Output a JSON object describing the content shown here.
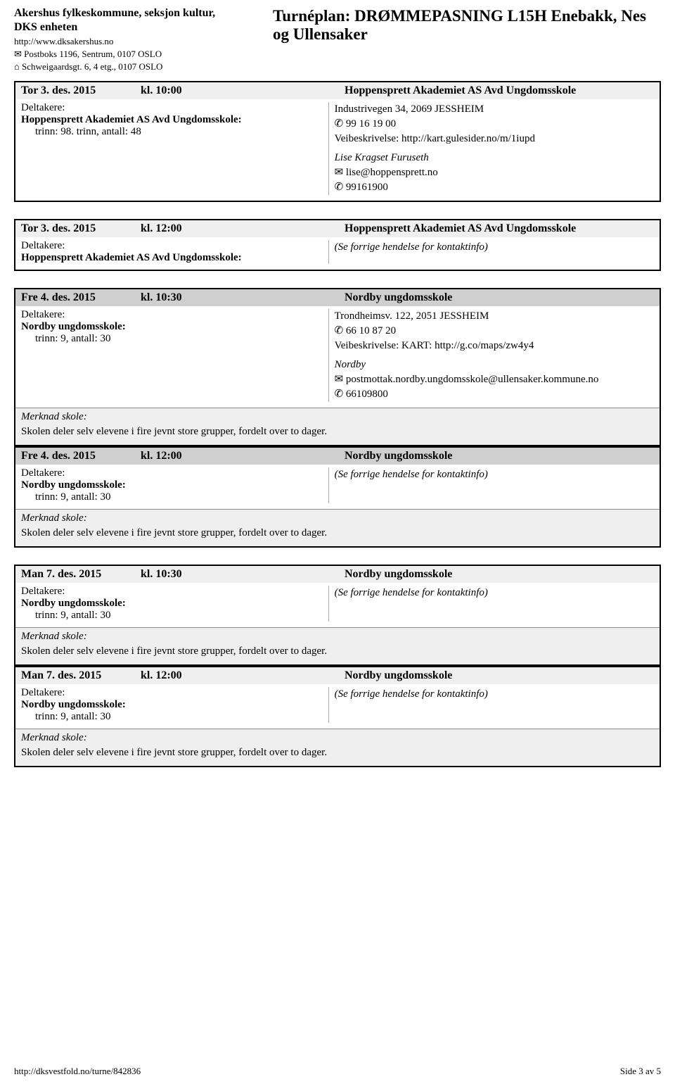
{
  "header": {
    "org_line1": "Akershus fylkeskommune, seksjon kultur,",
    "org_line2": "DKS enheten",
    "url": "http://www.dksakershus.no",
    "addr1": "✉ Postboks 1196, Sentrum, 0107 OSLO",
    "addr2": "⌂ Schweigaardsgt. 6, 4 etg., 0107 OSLO",
    "title": "Turnéplan: DRØMMEPASNING L15H Enebakk, Nes og Ullensaker"
  },
  "labels": {
    "deltakere": "Deltakere:",
    "merknad": "Merknad skole:",
    "see_prev": "(Se forrige hendelse for kontaktinfo)"
  },
  "events": [
    {
      "header_bg": "gray",
      "date": "Tor 3. des. 2015",
      "time": "kl. 10:00",
      "venue": "Hoppensprett Akademiet AS Avd Ungdomsskole",
      "school": "Hoppensprett Akademiet AS Avd Ungdomsskole:",
      "trinn": "trinn: 98. trinn, antall: 48",
      "right": [
        {
          "text": "Industrivegen 34, 2069 JESSHEIM"
        },
        {
          "text": "✆ 99 16 19 00"
        },
        {
          "text": "Veibeskrivelse: http://kart.gulesider.no/m/1iupd"
        },
        {
          "text": "Lise Kragset Furuseth",
          "italic": true,
          "spaceBefore": true
        },
        {
          "text": "✉ lise@hoppensprett.no"
        },
        {
          "text": "✆ 99161900"
        }
      ]
    },
    {
      "header_bg": "gray",
      "date": "Tor 3. des. 2015",
      "time": "kl. 12:00",
      "venue": "Hoppensprett Akademiet AS Avd Ungdomsskole",
      "school": "Hoppensprett Akademiet AS Avd Ungdomsskole:",
      "trinn": "",
      "right_seeprev": true
    },
    {
      "header_bg": "dark",
      "date": "Fre 4. des. 2015",
      "time": "kl. 10:30",
      "venue": "Nordby ungdomsskole",
      "school": "Nordby ungdomsskole:",
      "trinn": "trinn: 9, antall: 30",
      "right": [
        {
          "text": "Trondheimsv. 122, 2051 JESSHEIM"
        },
        {
          "text": "✆ 66 10 87 20"
        },
        {
          "text": "Veibeskrivelse: KART: http://g.co/maps/zw4y4"
        },
        {
          "text": "Nordby",
          "italic": true,
          "spaceBefore": true
        },
        {
          "text": "✉ postmottak.nordby.ungdomsskole@ullensaker.kommune.no"
        },
        {
          "text": "✆ 66109800"
        }
      ],
      "merknad_text": "Skolen deler selv elevene i fire jevnt store grupper, fordelt over to dager.",
      "no_bottom_margin": true
    },
    {
      "header_bg": "dark",
      "date": "Fre 4. des. 2015",
      "time": "kl. 12:00",
      "venue": "Nordby ungdomsskole",
      "school": "Nordby ungdomsskole:",
      "trinn": "trinn: 9, antall: 30",
      "right_seeprev": true,
      "merknad_text": "Skolen deler selv elevene i fire jevnt store grupper, fordelt over to dager."
    },
    {
      "header_bg": "gray",
      "date": "Man 7. des. 2015",
      "time": "kl. 10:30",
      "venue": "Nordby ungdomsskole",
      "school": "Nordby ungdomsskole:",
      "trinn": "trinn: 9, antall: 30",
      "right_seeprev": true,
      "merknad_text": "Skolen deler selv elevene i fire jevnt store grupper, fordelt over to dager.",
      "no_bottom_margin": true
    },
    {
      "header_bg": "gray",
      "date": "Man 7. des. 2015",
      "time": "kl. 12:00",
      "venue": "Nordby ungdomsskole",
      "school": "Nordby ungdomsskole:",
      "trinn": "trinn: 9, antall: 30",
      "right_seeprev": true,
      "merknad_text": "Skolen deler selv elevene i fire jevnt store grupper, fordelt over to dager."
    }
  ],
  "footer": {
    "url": "http://dksvestfold.no/turne/842836",
    "page": "Side 3 av 5"
  }
}
